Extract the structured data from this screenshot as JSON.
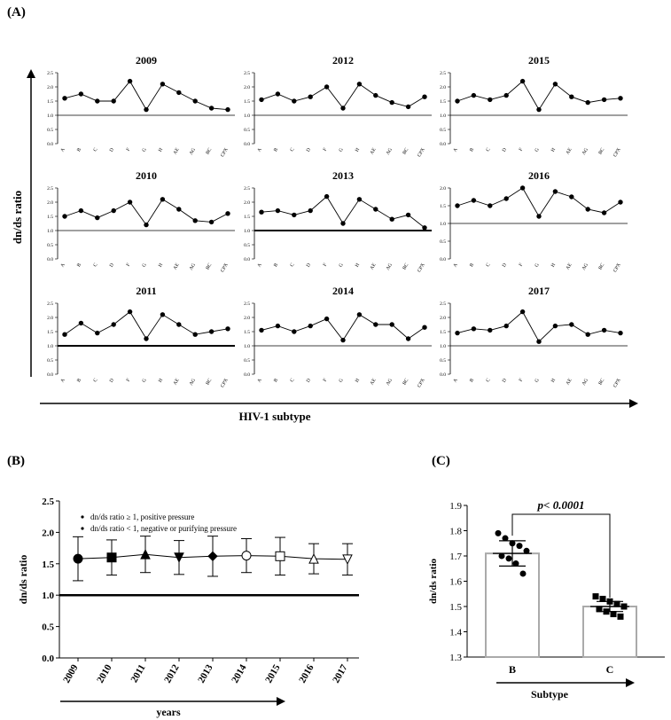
{
  "panel_a": {
    "label": "(A)",
    "y_axis_label": "dn/ds ratio",
    "x_axis_label": "HIV-1 subtype"
  },
  "panel_b": {
    "label": "(B)"
  },
  "panel_c": {
    "label": "(C)"
  },
  "chart_data": [
    {
      "type": "line",
      "title": "2009",
      "categories": [
        "A",
        "B",
        "C",
        "D",
        "F",
        "G",
        "H",
        "AE",
        "AG",
        "BC",
        "CPX"
      ],
      "values": [
        1.6,
        1.75,
        1.5,
        1.5,
        2.2,
        1.2,
        2.1,
        1.8,
        1.5,
        1.25,
        1.2
      ],
      "ylim": [
        0,
        2.5
      ],
      "yticks": [
        0.0,
        0.5,
        1.0,
        1.5,
        2.0,
        2.5
      ],
      "reference_line": 1.0
    },
    {
      "type": "line",
      "title": "2012",
      "categories": [
        "A",
        "B",
        "C",
        "D",
        "F",
        "G",
        "H",
        "AE",
        "AG",
        "BC",
        "CPX"
      ],
      "values": [
        1.55,
        1.75,
        1.5,
        1.65,
        2.0,
        1.25,
        2.1,
        1.7,
        1.45,
        1.3,
        1.65
      ],
      "ylim": [
        0,
        2.5
      ],
      "yticks": [
        0.0,
        0.5,
        1.0,
        1.5,
        2.0,
        2.5
      ],
      "reference_line": 1.0
    },
    {
      "type": "line",
      "title": "2015",
      "categories": [
        "A",
        "B",
        "C",
        "D",
        "F",
        "G",
        "H",
        "AE",
        "AG",
        "BC",
        "CPX"
      ],
      "values": [
        1.5,
        1.7,
        1.55,
        1.7,
        2.2,
        1.2,
        2.1,
        1.65,
        1.45,
        1.55,
        1.6
      ],
      "ylim": [
        0,
        2.5
      ],
      "yticks": [
        0.0,
        0.5,
        1.0,
        1.5,
        2.0,
        2.5
      ],
      "reference_line": 1.0
    },
    {
      "type": "line",
      "title": "2010",
      "categories": [
        "A",
        "B",
        "C",
        "D",
        "F",
        "G",
        "H",
        "AE",
        "AG",
        "BC",
        "CPX"
      ],
      "values": [
        1.5,
        1.7,
        1.45,
        1.7,
        2.0,
        1.2,
        2.1,
        1.75,
        1.35,
        1.3,
        1.6
      ],
      "ylim": [
        0,
        2.5
      ],
      "yticks": [
        0.0,
        0.5,
        1.0,
        1.5,
        2.0,
        2.5
      ],
      "reference_line": 1.0
    },
    {
      "type": "line",
      "title": "2013",
      "categories": [
        "A",
        "B",
        "C",
        "D",
        "F",
        "G",
        "H",
        "AE",
        "AG",
        "BC",
        "CPX"
      ],
      "values": [
        1.65,
        1.7,
        1.55,
        1.7,
        2.2,
        1.25,
        2.1,
        1.75,
        1.4,
        1.55,
        1.1
      ],
      "ylim": [
        0,
        2.5
      ],
      "yticks": [
        0.0,
        0.5,
        1.0,
        1.5,
        2.0,
        2.5
      ],
      "reference_line": 1.0
    },
    {
      "type": "line",
      "title": "2016",
      "categories": [
        "A",
        "B",
        "C",
        "D",
        "F",
        "G",
        "H",
        "AE",
        "AG",
        "BC",
        "CPX"
      ],
      "values": [
        1.5,
        1.65,
        1.5,
        1.7,
        2.0,
        1.2,
        1.9,
        1.75,
        1.4,
        1.3,
        1.6
      ],
      "ylim": [
        0,
        2.0
      ],
      "yticks": [
        0.0,
        0.5,
        1.0,
        1.5,
        2.0
      ],
      "reference_line": 1.0
    },
    {
      "type": "line",
      "title": "2011",
      "categories": [
        "A",
        "B",
        "C",
        "D",
        "F",
        "G",
        "H",
        "AE",
        "AG",
        "BC",
        "CPX"
      ],
      "values": [
        1.4,
        1.8,
        1.45,
        1.75,
        2.2,
        1.25,
        2.1,
        1.75,
        1.4,
        1.5,
        1.6
      ],
      "ylim": [
        0,
        2.5
      ],
      "yticks": [
        0.0,
        0.5,
        1.0,
        1.5,
        2.0,
        2.5
      ],
      "reference_line": 1.0
    },
    {
      "type": "line",
      "title": "2014",
      "categories": [
        "A",
        "B",
        "C",
        "D",
        "F",
        "G",
        "H",
        "AE",
        "AG",
        "BC",
        "CPX"
      ],
      "values": [
        1.55,
        1.7,
        1.5,
        1.7,
        1.95,
        1.2,
        2.1,
        1.75,
        1.75,
        1.25,
        1.65
      ],
      "ylim": [
        0,
        2.5
      ],
      "yticks": [
        0.0,
        0.5,
        1.0,
        1.5,
        2.0,
        2.5
      ],
      "reference_line": 1.0
    },
    {
      "type": "line",
      "title": "2017",
      "categories": [
        "A",
        "B",
        "C",
        "D",
        "F",
        "G",
        "H",
        "AE",
        "AG",
        "BC",
        "CPX"
      ],
      "values": [
        1.45,
        1.6,
        1.55,
        1.7,
        2.2,
        1.15,
        1.7,
        1.75,
        1.4,
        1.55,
        1.45
      ],
      "ylim": [
        0,
        2.5
      ],
      "yticks": [
        0.0,
        0.5,
        1.0,
        1.5,
        2.0,
        2.5
      ],
      "reference_line": 1.0
    },
    {
      "type": "line",
      "categories": [
        "2009",
        "2010",
        "2011",
        "2012",
        "2013",
        "2014",
        "2015",
        "2016",
        "2017"
      ],
      "values": [
        1.58,
        1.6,
        1.65,
        1.6,
        1.62,
        1.63,
        1.62,
        1.58,
        1.57
      ],
      "error": [
        0.35,
        0.28,
        0.29,
        0.27,
        0.32,
        0.27,
        0.3,
        0.24,
        0.25
      ],
      "markers": [
        "circle",
        "square",
        "triangle-up",
        "triangle-down",
        "diamond",
        "circle-open",
        "square-open",
        "triangle-up-open",
        "triangle-down-open"
      ],
      "ylabel": "dn/ds ratio",
      "xlabel": "years",
      "ylim": [
        0,
        2.5
      ],
      "yticks": [
        "0.0",
        "0.5",
        "1.0",
        "1.5",
        "2.0",
        "2.5"
      ],
      "reference_line": 1.0,
      "legend": [
        "dn/ds ratio ≥ 1, positive pressure",
        "dn/ds ratio < 1, negative or purifying pressure"
      ],
      "legend_position": "top-left"
    },
    {
      "type": "bar",
      "categories": [
        "B",
        "C"
      ],
      "values": [
        1.71,
        1.5
      ],
      "error": [
        0.05,
        0.02
      ],
      "points": [
        [
          1.79,
          1.77,
          1.75,
          1.74,
          1.72,
          1.7,
          1.69,
          1.67,
          1.63
        ],
        [
          1.54,
          1.53,
          1.52,
          1.51,
          1.5,
          1.49,
          1.48,
          1.47,
          1.46
        ]
      ],
      "annotation": "p< 0.0001",
      "ylabel": "dn/ds ratio",
      "xlabel": "Subtype",
      "ylim": [
        1.3,
        1.9
      ],
      "yticks": [
        "1.3",
        "1.4",
        "1.5",
        "1.6",
        "1.7",
        "1.8",
        "1.9"
      ]
    }
  ]
}
